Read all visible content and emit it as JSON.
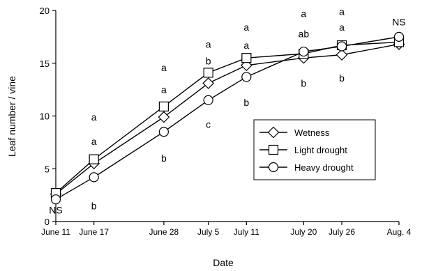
{
  "chart_data": {
    "type": "line",
    "title": "",
    "xlabel": "Date",
    "ylabel": "Leaf number / vine",
    "ylim": [
      0,
      20
    ],
    "yticks": [
      0,
      5,
      10,
      15,
      20
    ],
    "x_dates": [
      "2000-06-11",
      "2000-06-17",
      "2000-06-28",
      "2000-07-05",
      "2000-07-11",
      "2000-07-20",
      "2000-07-26",
      "2000-08-04"
    ],
    "categories": [
      "June 11",
      "June 17",
      "June 28",
      "July 5",
      "July 11",
      "July 20",
      "July 26",
      "Aug. 4"
    ],
    "grid": false,
    "legend_position": "center-right",
    "series": [
      {
        "name": "Wetness",
        "marker": "diamond",
        "values": [
          2.6,
          5.5,
          9.9,
          13.1,
          14.8,
          15.5,
          15.8,
          16.8
        ]
      },
      {
        "name": "Light drought",
        "marker": "square",
        "values": [
          2.7,
          5.9,
          10.9,
          14.1,
          15.5,
          15.9,
          16.7,
          17.0
        ]
      },
      {
        "name": "Heavy drought",
        "marker": "circle",
        "values": [
          2.1,
          4.2,
          8.5,
          11.5,
          13.7,
          16.1,
          16.6,
          17.5
        ]
      }
    ],
    "annotations": [
      {
        "date": "2000-06-11",
        "y": 1.1,
        "text": "NS"
      },
      {
        "date": "2000-06-17",
        "y": 9.9,
        "text": "a"
      },
      {
        "date": "2000-06-17",
        "y": 7.6,
        "text": "a"
      },
      {
        "date": "2000-06-17",
        "y": 1.5,
        "text": "b"
      },
      {
        "date": "2000-06-28",
        "y": 14.6,
        "text": "a"
      },
      {
        "date": "2000-06-28",
        "y": 12.5,
        "text": "a"
      },
      {
        "date": "2000-06-28",
        "y": 6.0,
        "text": "b"
      },
      {
        "date": "2000-07-05",
        "y": 16.8,
        "text": "a"
      },
      {
        "date": "2000-07-05",
        "y": 15.2,
        "text": "b"
      },
      {
        "date": "2000-07-05",
        "y": 9.2,
        "text": "c"
      },
      {
        "date": "2000-07-11",
        "y": 18.4,
        "text": "a"
      },
      {
        "date": "2000-07-11",
        "y": 16.7,
        "text": "a"
      },
      {
        "date": "2000-07-11",
        "y": 11.3,
        "text": "b"
      },
      {
        "date": "2000-07-20",
        "y": 19.7,
        "text": "a"
      },
      {
        "date": "2000-07-20",
        "y": 17.8,
        "text": "ab"
      },
      {
        "date": "2000-07-20",
        "y": 13.1,
        "text": "b"
      },
      {
        "date": "2000-07-26",
        "y": 19.9,
        "text": "a"
      },
      {
        "date": "2000-07-26",
        "y": 18.4,
        "text": "a"
      },
      {
        "date": "2000-07-26",
        "y": 13.6,
        "text": "b"
      },
      {
        "date": "2000-08-04",
        "y": 18.9,
        "text": "NS"
      }
    ]
  }
}
